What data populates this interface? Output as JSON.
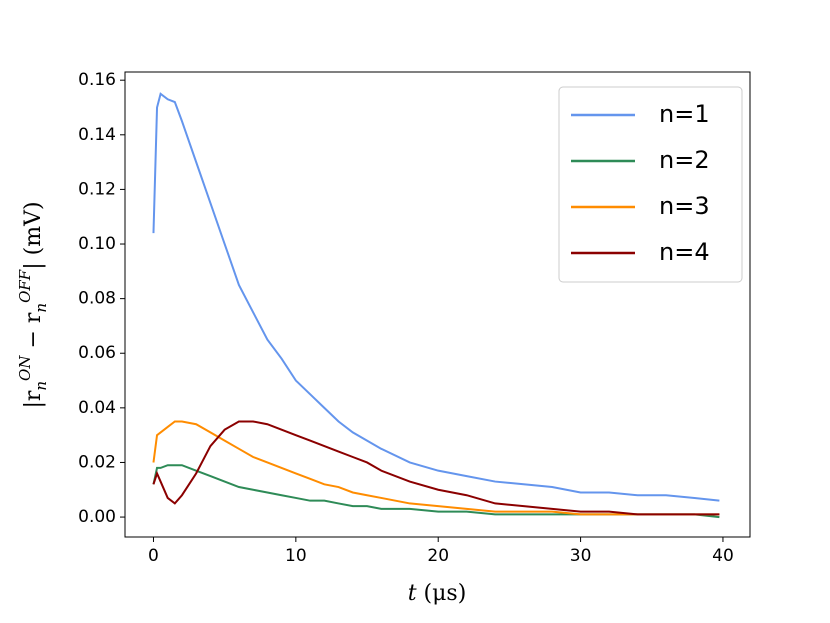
{
  "chart_data": {
    "type": "line",
    "x_label": [
      "t",
      " (μs)"
    ],
    "y_label": [
      "|r",
      "n",
      "ON",
      " − r",
      "n",
      "OFF",
      "| (mV)"
    ],
    "x": [
      0,
      0.25,
      0.5,
      1,
      1.5,
      2,
      3,
      4,
      5,
      6,
      7,
      8,
      9,
      10,
      11,
      12,
      13,
      14,
      15,
      16,
      18,
      20,
      22,
      24,
      26,
      28,
      30,
      32,
      34,
      36,
      38,
      39.75
    ],
    "series": [
      {
        "name": "n=1",
        "color": "#6495ed",
        "values": [
          0.104,
          0.15,
          0.155,
          0.153,
          0.152,
          0.145,
          0.13,
          0.115,
          0.1,
          0.085,
          0.075,
          0.065,
          0.058,
          0.05,
          0.045,
          0.04,
          0.035,
          0.031,
          0.028,
          0.025,
          0.02,
          0.017,
          0.015,
          0.013,
          0.012,
          0.011,
          0.009,
          0.009,
          0.008,
          0.008,
          0.007,
          0.006
        ]
      },
      {
        "name": "n=2",
        "color": "#2e8b57",
        "values": [
          0.012,
          0.018,
          0.018,
          0.019,
          0.019,
          0.019,
          0.017,
          0.015,
          0.013,
          0.011,
          0.01,
          0.009,
          0.008,
          0.007,
          0.006,
          0.006,
          0.005,
          0.004,
          0.004,
          0.003,
          0.003,
          0.002,
          0.002,
          0.001,
          0.001,
          0.001,
          0.001,
          0.001,
          0.001,
          0.001,
          0.001,
          0
        ]
      },
      {
        "name": "n=3",
        "color": "#ff8c00",
        "values": [
          0.02,
          0.03,
          0.031,
          0.033,
          0.035,
          0.035,
          0.034,
          0.031,
          0.028,
          0.025,
          0.022,
          0.02,
          0.018,
          0.016,
          0.014,
          0.012,
          0.011,
          0.009,
          0.008,
          0.007,
          0.005,
          0.004,
          0.003,
          0.002,
          0.002,
          0.002,
          0.001,
          0.001,
          0.001,
          0.001,
          0.001,
          0.001
        ]
      },
      {
        "name": "n=4",
        "color": "#8b0000",
        "values": [
          0.012,
          0.016,
          0.013,
          0.007,
          0.005,
          0.008,
          0.016,
          0.026,
          0.032,
          0.035,
          0.035,
          0.034,
          0.032,
          0.03,
          0.028,
          0.026,
          0.024,
          0.022,
          0.02,
          0.017,
          0.013,
          0.01,
          0.008,
          0.005,
          0.004,
          0.003,
          0.002,
          0.002,
          0.001,
          0.001,
          0.001,
          0.001
        ]
      }
    ],
    "xlim": [
      -2,
      41.9
    ],
    "ylim": [
      -0.0073,
      0.163
    ],
    "xticks": [
      0,
      10,
      20,
      30,
      40
    ],
    "yticks": [
      {
        "value": 0,
        "label": "0.00"
      },
      0.02,
      0.04,
      0.06,
      0.08,
      {
        "value": 0.1,
        "label": "0.10"
      },
      0.12,
      0.14,
      0.16
    ],
    "legend": "upper right",
    "grid": false
  }
}
